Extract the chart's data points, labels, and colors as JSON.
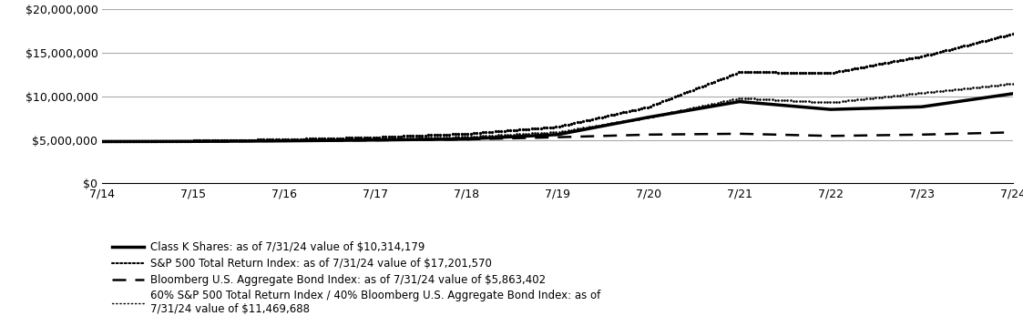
{
  "x_labels": [
    "7/14",
    "7/15",
    "7/16",
    "7/17",
    "7/18",
    "7/19",
    "7/20",
    "7/21",
    "7/22",
    "7/23",
    "7/24"
  ],
  "x_values": [
    0,
    1,
    2,
    3,
    4,
    5,
    6,
    7,
    8,
    9,
    10
  ],
  "class_k": [
    4800000,
    4820000,
    4880000,
    4980000,
    5100000,
    5600000,
    7600000,
    9400000,
    8500000,
    8800000,
    10314179
  ],
  "sp500": [
    4800000,
    4900000,
    5050000,
    5300000,
    5700000,
    6500000,
    8800000,
    12800000,
    12700000,
    14600000,
    17201570
  ],
  "bloomberg": [
    4800000,
    4820000,
    4870000,
    4950000,
    5050000,
    5300000,
    5600000,
    5700000,
    5450000,
    5600000,
    5863402
  ],
  "blend_60_40": [
    4800000,
    4860000,
    4960000,
    5100000,
    5350000,
    5900000,
    7600000,
    9800000,
    9300000,
    10400000,
    11469688
  ],
  "ylim": [
    0,
    20000000
  ],
  "yticks": [
    0,
    5000000,
    10000000,
    15000000,
    20000000
  ],
  "legend_labels": [
    "Class K Shares: as of 7/31/24 value of $10,314,179",
    "S&P 500 Total Return Index: as of 7/31/24 value of $17,201,570",
    "Bloomberg U.S. Aggregate Bond Index: as of 7/31/24 value of $5,863,402",
    "60% S&P 500 Total Return Index / 40% Bloomberg U.S. Aggregate Bond Index: as of\n7/31/24 value of $11,469,688"
  ],
  "line_color": "#000000",
  "background_color": "#ffffff",
  "grid_color": "#aaaaaa",
  "tick_fontsize": 9,
  "legend_fontsize": 8.5
}
